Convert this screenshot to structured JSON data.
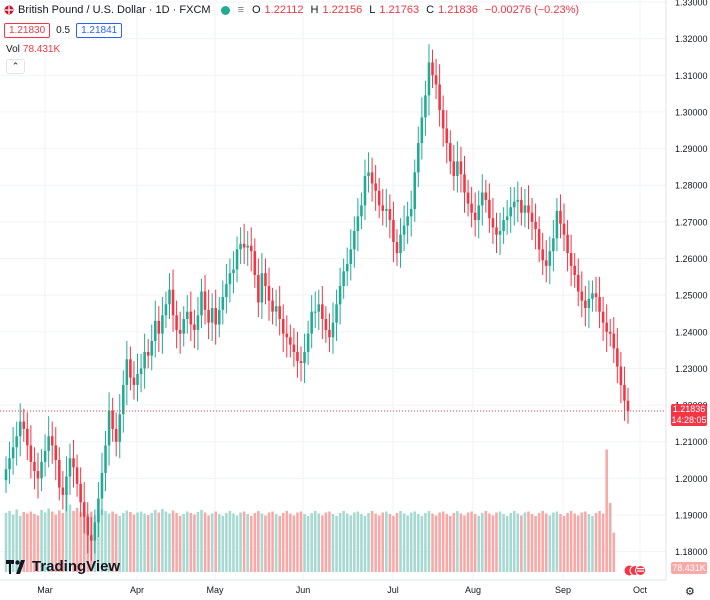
{
  "header": {
    "symbol": "British Pound / U.S. Dollar · 1D · FXCM",
    "o_label": "O",
    "o_value": "1.22112",
    "h_label": "H",
    "h_value": "1.22156",
    "l_label": "L",
    "l_value": "1.21763",
    "c_label": "C",
    "c_value": "1.21836",
    "change": "−0.00276 (−0.23%)",
    "bid": "1.21830",
    "spread": "0.5",
    "ask": "1.21841",
    "vol_label": "Vol",
    "vol_value": "78.431K"
  },
  "price_axis_labels": [
    "1.33000",
    "1.32000",
    "1.31000",
    "1.30000",
    "1.29000",
    "1.28000",
    "1.27000",
    "1.26000",
    "1.25000",
    "1.24000",
    "1.23000",
    "1.22000",
    "1.21000",
    "1.20000",
    "1.19000",
    "1.18000"
  ],
  "current_price_label": "1.21836",
  "countdown": "14:28:05",
  "volume_label": "78.431K",
  "logo_text": "TradingView",
  "colors": {
    "up": "#22ab94",
    "down": "#f23645",
    "up_vol": "#a5d9d1",
    "down_vol": "#f7a9a7",
    "grid": "#f0f3fa"
  },
  "chart_data": {
    "type": "candlestick",
    "title": "British Pound / U.S. Dollar · 1D · FXCM",
    "ylim": [
      1.175,
      1.33
    ],
    "x_ticks": [
      "Mar",
      "Apr",
      "May",
      "Jun",
      "Jul",
      "Aug",
      "Sep",
      "Oct"
    ],
    "series": [
      {
        "name": "GBPUSD",
        "close": [
          1.2025,
          1.2055,
          1.2085,
          1.2115,
          1.2155,
          1.2135,
          1.209,
          1.2045,
          1.202,
          1.2,
          1.2045,
          1.2075,
          1.2115,
          1.209,
          1.205,
          1.1975,
          1.1955,
          1.2005,
          1.2055,
          1.203,
          1.1985,
          1.1935,
          1.1895,
          1.1845,
          1.183,
          1.188,
          1.1945,
          1.2015,
          1.209,
          1.2185,
          1.2135,
          1.21,
          1.2175,
          1.2255,
          1.2325,
          1.2275,
          1.2255,
          1.2285,
          1.23,
          1.2345,
          1.2335,
          1.2375,
          1.243,
          1.2395,
          1.2445,
          1.2475,
          1.2515,
          1.2445,
          1.2405,
          1.2395,
          1.2435,
          1.2455,
          1.242,
          1.2405,
          1.2445,
          1.251,
          1.246,
          1.2425,
          1.2465,
          1.242,
          1.246,
          1.2495,
          1.253,
          1.256,
          1.257,
          1.2625,
          1.264,
          1.263,
          1.2635,
          1.262,
          1.2555,
          1.248,
          1.256,
          1.2525,
          1.2485,
          1.2455,
          1.247,
          1.2435,
          1.2395,
          1.2385,
          1.2365,
          1.2345,
          1.232,
          1.2315,
          1.2345,
          1.2395,
          1.2455,
          1.2455,
          1.2475,
          1.2435,
          1.2405,
          1.2385,
          1.2425,
          1.2475,
          1.2525,
          1.2565,
          1.2585,
          1.2625,
          1.2675,
          1.2715,
          1.2745,
          1.2825,
          1.2835,
          1.2805,
          1.2785,
          1.2745,
          1.273,
          1.2735,
          1.2705,
          1.2645,
          1.2615,
          1.2665,
          1.269,
          1.2715,
          1.2735,
          1.2835,
          1.2915,
          1.2985,
          1.3045,
          1.3135,
          1.31,
          1.3075,
          1.3005,
          1.2955,
          1.2915,
          1.2865,
          1.2825,
          1.2865,
          1.283,
          1.278,
          1.275,
          1.2725,
          1.2705,
          1.2745,
          1.278,
          1.276,
          1.271,
          1.2685,
          1.2665,
          1.2675,
          1.2705,
          1.2715,
          1.274,
          1.2755,
          1.276,
          1.2725,
          1.2745,
          1.2725,
          1.27,
          1.268,
          1.2625,
          1.2595,
          1.258,
          1.262,
          1.2655,
          1.273,
          1.2695,
          1.2665,
          1.2615,
          1.258,
          1.2555,
          1.251,
          1.2485,
          1.2465,
          1.249,
          1.2505,
          1.2495,
          1.2455,
          1.2425,
          1.24,
          1.2395,
          1.2355,
          1.2305,
          1.2255,
          1.2212,
          1.2184
        ]
      }
    ],
    "volume": {
      "last": 78431,
      "ylim": [
        0,
        400000
      ],
      "values": [
        118000,
        122000,
        115000,
        125000,
        112000,
        120000,
        117000,
        121000,
        116000,
        113000,
        124000,
        119000,
        127000,
        121000,
        115000,
        123000,
        118000,
        160000,
        135000,
        122000,
        128000,
        119000,
        124000,
        116000,
        121000,
        113000,
        119000,
        125000,
        122000,
        117000,
        121000,
        116000,
        112000,
        118000,
        123000,
        120000,
        115000,
        119000,
        121000,
        117000,
        114000,
        118000,
        124000,
        119000,
        126000,
        121000,
        117000,
        123000,
        118000,
        112000,
        116000,
        121000,
        118000,
        115000,
        120000,
        124000,
        119000,
        113000,
        117000,
        121000,
        116000,
        112000,
        118000,
        122000,
        117000,
        113000,
        119000,
        121000,
        116000,
        112000,
        118000,
        122000,
        117000,
        113000,
        119000,
        121000,
        116000,
        112000,
        118000,
        122000,
        117000,
        113000,
        119000,
        121000,
        116000,
        112000,
        118000,
        122000,
        117000,
        113000,
        119000,
        121000,
        116000,
        112000,
        118000,
        122000,
        117000,
        113000,
        119000,
        121000,
        116000,
        112000,
        118000,
        122000,
        117000,
        113000,
        119000,
        121000,
        116000,
        112000,
        118000,
        122000,
        117000,
        113000,
        119000,
        121000,
        116000,
        112000,
        118000,
        122000,
        117000,
        113000,
        119000,
        121000,
        116000,
        112000,
        118000,
        122000,
        117000,
        113000,
        119000,
        121000,
        116000,
        112000,
        118000,
        122000,
        117000,
        113000,
        119000,
        121000,
        116000,
        112000,
        118000,
        122000,
        117000,
        113000,
        119000,
        121000,
        116000,
        112000,
        118000,
        122000,
        117000,
        113000,
        119000,
        121000,
        116000,
        112000,
        118000,
        122000,
        117000,
        113000,
        119000,
        121000,
        116000,
        112000,
        118000,
        122000,
        117000,
        245000,
        138000,
        78431
      ]
    }
  }
}
